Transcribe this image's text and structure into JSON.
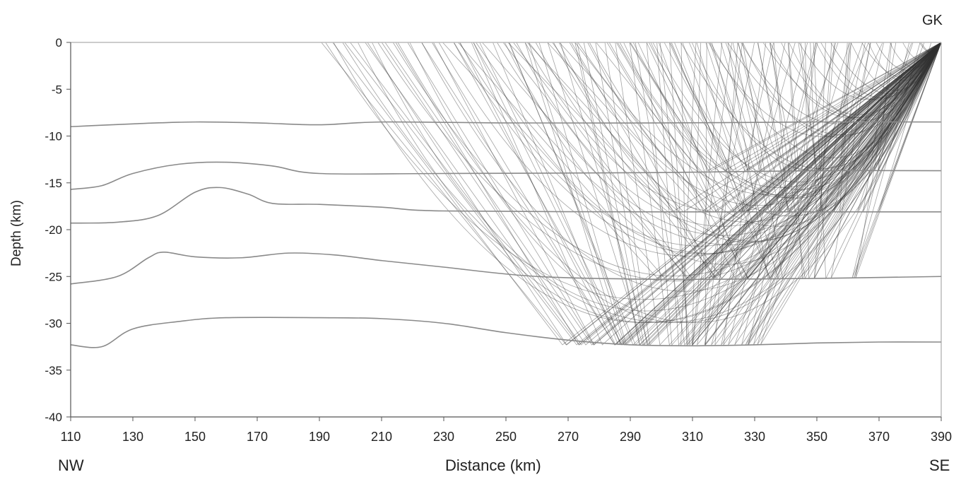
{
  "chart_data": {
    "type": "line",
    "title": "",
    "xlabel": "Distance (km)",
    "ylabel": "Depth (km)",
    "xlim": [
      110,
      390
    ],
    "ylim": [
      -40,
      0
    ],
    "xticks": [
      110,
      130,
      150,
      170,
      190,
      210,
      230,
      250,
      270,
      290,
      310,
      330,
      350,
      370,
      390
    ],
    "yticks": [
      0,
      -5,
      -10,
      -15,
      -20,
      -25,
      -30,
      -35,
      -40
    ],
    "grid": false,
    "annotations": {
      "left_end": "NW",
      "right_end": "SE",
      "station": "GK",
      "station_x": 390,
      "station_depth": 0
    },
    "series": [
      {
        "values": [
          [
            110,
            0
          ],
          [
            390,
            0
          ]
        ]
      },
      {
        "values": [
          [
            110,
            -9.0
          ],
          [
            130,
            -8.7
          ],
          [
            150,
            -8.5
          ],
          [
            170,
            -8.6
          ],
          [
            190,
            -8.8
          ],
          [
            210,
            -8.5
          ],
          [
            250,
            -8.6
          ],
          [
            300,
            -8.6
          ],
          [
            350,
            -8.5
          ],
          [
            390,
            -8.5
          ]
        ]
      },
      {
        "values": [
          [
            110,
            -15.7
          ],
          [
            120,
            -15.3
          ],
          [
            130,
            -14.0
          ],
          [
            145,
            -13.0
          ],
          [
            160,
            -12.8
          ],
          [
            175,
            -13.2
          ],
          [
            190,
            -14.0
          ],
          [
            230,
            -14.0
          ],
          [
            300,
            -13.9
          ],
          [
            350,
            -13.7
          ],
          [
            390,
            -13.7
          ]
        ]
      },
      {
        "values": [
          [
            110,
            -19.3
          ],
          [
            125,
            -19.2
          ],
          [
            138,
            -18.5
          ],
          [
            150,
            -16.0
          ],
          [
            158,
            -15.5
          ],
          [
            167,
            -16.2
          ],
          [
            175,
            -17.2
          ],
          [
            190,
            -17.3
          ],
          [
            210,
            -17.6
          ],
          [
            230,
            -18.0
          ],
          [
            300,
            -18.1
          ],
          [
            350,
            -18.1
          ],
          [
            390,
            -18.1
          ]
        ]
      },
      {
        "values": [
          [
            110,
            -25.8
          ],
          [
            125,
            -25.0
          ],
          [
            135,
            -23.0
          ],
          [
            140,
            -22.4
          ],
          [
            150,
            -22.9
          ],
          [
            165,
            -23.0
          ],
          [
            180,
            -22.5
          ],
          [
            195,
            -22.7
          ],
          [
            210,
            -23.3
          ],
          [
            230,
            -24.0
          ],
          [
            260,
            -25.0
          ],
          [
            300,
            -25.3
          ],
          [
            350,
            -25.2
          ],
          [
            390,
            -25.0
          ]
        ]
      },
      {
        "values": [
          [
            110,
            -32.3
          ],
          [
            120,
            -32.5
          ],
          [
            130,
            -30.6
          ],
          [
            145,
            -29.8
          ],
          [
            160,
            -29.4
          ],
          [
            190,
            -29.4
          ],
          [
            210,
            -29.5
          ],
          [
            230,
            -30.0
          ],
          [
            250,
            -31.0
          ],
          [
            270,
            -31.8
          ],
          [
            290,
            -32.3
          ],
          [
            310,
            -32.4
          ],
          [
            330,
            -32.3
          ],
          [
            350,
            -32.1
          ],
          [
            370,
            -32.0
          ],
          [
            390,
            -32.0
          ]
        ]
      }
    ],
    "ray_fans": [
      {
        "interface_depth": 0,
        "x_start": 192,
        "x_end": 385,
        "count": 55,
        "turn_depth_factor": 0.55
      },
      {
        "interface_depth": -13.7,
        "x_start": 290,
        "x_end": 385,
        "turn_x": 342,
        "count": 22
      },
      {
        "interface_depth": -18.1,
        "x_start": 250,
        "x_end": 385,
        "turn_x": 336,
        "count": 24
      },
      {
        "interface_depth": -25.2,
        "x_start": 230,
        "x_end": 385,
        "turn_x": 333,
        "count": 28
      },
      {
        "interface_depth": -32.3,
        "x_start": 192,
        "x_end": 370,
        "turn_x": 300,
        "count": 60
      }
    ]
  }
}
